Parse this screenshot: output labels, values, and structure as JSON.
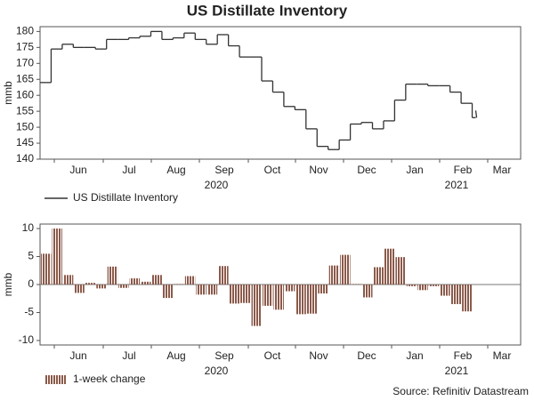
{
  "title": "US Distillate Inventory",
  "source": "Source: Refinitiv Datastream",
  "chart_data": [
    {
      "type": "line",
      "ylabel": "mmb",
      "legend": "US Distillate Inventory",
      "color": "#333333",
      "month_labels": [
        "Jun",
        "Jul",
        "Aug",
        "Sep",
        "Oct",
        "Nov",
        "Dec",
        "Jan",
        "Feb",
        "Mar"
      ],
      "year_labels": [
        "2020",
        "2021"
      ],
      "values": [
        164,
        174.5,
        176,
        175,
        175,
        174.5,
        177.5,
        177.5,
        178,
        178.5,
        180,
        177.5,
        178,
        179.5,
        177.5,
        176,
        179,
        175.5,
        172,
        172,
        164.5,
        161,
        156.5,
        155.5,
        149.5,
        144,
        143,
        146,
        151,
        151.5,
        149.5,
        152,
        158.5,
        163.5,
        163.5,
        163,
        163,
        161,
        157.5,
        153
      ],
      "ylim": [
        140,
        181.5
      ],
      "yticks": [
        140,
        145,
        150,
        155,
        160,
        165,
        170,
        175,
        180
      ]
    },
    {
      "type": "bar",
      "ylabel": "mmb",
      "legend": "1-week change",
      "color": "#8b5a4a",
      "month_labels": [
        "Jun",
        "Jul",
        "Aug",
        "Sep",
        "Oct",
        "Nov",
        "Dec",
        "Jan",
        "Feb",
        "Mar"
      ],
      "year_labels": [
        "2020",
        "2021"
      ],
      "values": [
        5.5,
        10,
        1.7,
        -1.5,
        0.3,
        -0.7,
        3.2,
        -0.6,
        1.1,
        0.5,
        1.7,
        -2.4,
        0.1,
        1.5,
        -1.8,
        -1.8,
        3.3,
        -3.4,
        -3.3,
        -7.4,
        -3.8,
        -4.5,
        -1.2,
        -5.3,
        -5.2,
        -1.6,
        3.4,
        5.3,
        0.1,
        -2.3,
        3.1,
        6.4,
        4.9,
        -0.3,
        -1.0,
        -0.3,
        -2.0,
        -3.5,
        -4.8
      ],
      "ylim": [
        -10.8,
        10.8
      ],
      "yticks": [
        -10,
        -5,
        0,
        5,
        10
      ]
    }
  ]
}
